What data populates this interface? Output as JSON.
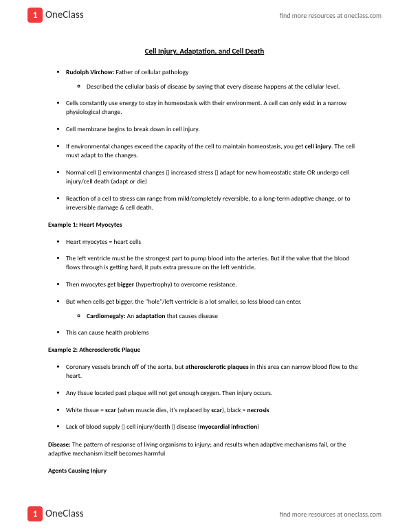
{
  "header": {
    "logo_glyph": "1",
    "logo_text": "OneClass",
    "link_text": "find more resources at oneclass.com"
  },
  "doc": {
    "title": "Cell Injury, Adaptation, and Cell Death",
    "bullets_intro": [
      {
        "html": "<b>Rudolph Virchow:</b> Father of cellular pathology",
        "sub": [
          "Described the cellular basis of disease by saying that every disease happens at the cellular level."
        ]
      },
      {
        "html": "Cells constantly use energy to stay in homeostasis with their environment. A cell can only exist in a narrow physiological change."
      },
      {
        "html": "Cell membrane begins to break down in cell injury."
      },
      {
        "html": "If environmental changes exceed the capacity of the cell to maintain homeostasis, you get <b>cell injury</b>. The cell must adapt to the changes."
      },
      {
        "html": "Normal cell <span class='arrow'>▯</span> environmental changes <span class='arrow'>▯</span> increased stress <span class='arrow'>▯</span> adapt for new homeostatic state OR undergo cell injury/cell death (adapt or die)"
      },
      {
        "html": "Reaction of a cell to stress can range from mild/completely reversible, to a long-term adaptive change, or to irreversible damage & cell death."
      }
    ],
    "example1_label": "Example 1: Heart Myocytes",
    "bullets_ex1": [
      {
        "html": "Heart myocytes = heart cells"
      },
      {
        "html": "The left ventricle must be the strongest part to pump blood into the arteries. But if the valve that the blood flows through is getting hard, it puts extra pressure on the left ventricle."
      },
      {
        "html": "Then myocytes get <b>bigger</b> (hypertrophy) to overcome resistance."
      },
      {
        "html": "But when cells get bigger, the \"hole\"/left ventricle is a lot smaller, so less blood can enter.",
        "sub": [
          "<b>Cardiomegaly:</b> An <b>adaptation</b> that causes disease"
        ]
      },
      {
        "html": "This can cause health problems"
      }
    ],
    "example2_label": "Example 2: Atherosclerotic Plaque",
    "bullets_ex2": [
      {
        "html": "Coronary vessels branch off of the aorta, but <b>atherosclerotic plaques</b> in this area can narrow blood flow to the heart."
      },
      {
        "html": "Any tissue located past plaque will not get enough oxygen. Then injury occurs."
      },
      {
        "html": "White tissue = <b>scar</b> (when muscle dies, it's replaced by <b>scar</b>), black = <b>necrosis</b>"
      },
      {
        "html": "Lack of blood supply <span class='arrow'>▯</span> cell injury/death <span class='arrow'>▯</span> disease (<b>myocardial infraction</b>)"
      }
    ],
    "disease_def": "<b>Disease:</b> The pattern of response of living organisms to injury; and results when adaptive mechanisms fail, or the adaptive mechanism itself becomes harmful",
    "agents_label": "Agents Causing Injury"
  }
}
